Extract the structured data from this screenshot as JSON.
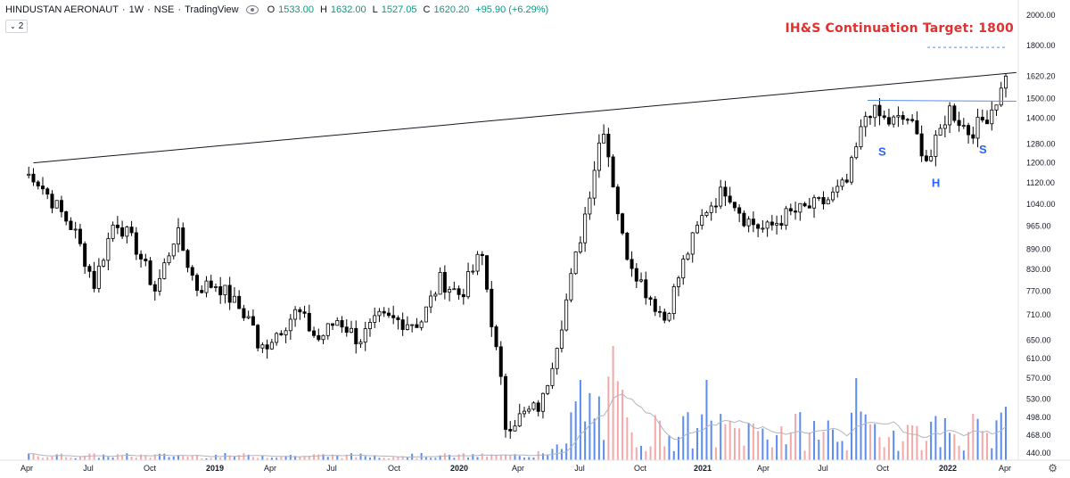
{
  "header": {
    "symbol": "HINDUSTAN AERONAUT",
    "interval": "1W",
    "exchange": "NSE",
    "source": "TradingView",
    "open_label": "O",
    "open": "1533.00",
    "high_label": "H",
    "high": "1632.00",
    "low_label": "L",
    "low": "1527.05",
    "close_label": "C",
    "close": "1620.20",
    "change": "+95.90 (+6.29%)",
    "collapse_count": "2"
  },
  "annotations": {
    "target_text": "IH&S Continuation Target: 1800",
    "shoulder_left": "S",
    "head": "H",
    "shoulder_right": "S"
  },
  "colors": {
    "up_candle": "#ffffff",
    "down_candle": "#000000",
    "volume_up": "#5b8def",
    "volume_down": "#f4a8a8",
    "neckline": "#5b8def",
    "target_text": "#e03131",
    "pattern_label": "#2962ff"
  },
  "chart_data": {
    "type": "candlestick",
    "price_axis": {
      "ticks": [
        2000,
        1800,
        1620.2,
        1500,
        1400,
        1280,
        1200,
        1120,
        1040,
        965,
        890,
        830,
        770,
        710,
        650,
        610,
        570,
        530,
        498,
        468,
        440
      ],
      "labels": [
        "2000.00",
        "1800.00",
        "1620.20",
        "1500.00",
        "1400.00",
        "1280.00",
        "1200.00",
        "1120.00",
        "1040.00",
        "965.00",
        "890.00",
        "830.00",
        "770.00",
        "710.00",
        "650.00",
        "610.00",
        "570.00",
        "530.00",
        "498.00",
        "468.00",
        "440.00"
      ],
      "scale": "log",
      "range": [
        436,
        2050
      ]
    },
    "time_axis": {
      "labels": [
        "Apr",
        "Jul",
        "Oct",
        "2019",
        "Apr",
        "Jul",
        "Oct",
        "2020",
        "Apr",
        "Jul",
        "Oct",
        "2021",
        "Apr",
        "Jul",
        "Oct",
        "2022",
        "Apr"
      ],
      "bold": [
        "2019",
        "2020",
        "2021",
        "2022"
      ]
    },
    "waypoints": [
      {
        "date": "2018-04",
        "close": 1150
      },
      {
        "date": "2018-06",
        "close": 950
      },
      {
        "date": "2018-07",
        "close": 790
      },
      {
        "date": "2018-08",
        "close": 990
      },
      {
        "date": "2018-09",
        "close": 900
      },
      {
        "date": "2018-10",
        "close": 770
      },
      {
        "date": "2018-11",
        "close": 950
      },
      {
        "date": "2018-12",
        "close": 780
      },
      {
        "date": "2019-01",
        "close": 790
      },
      {
        "date": "2019-03",
        "close": 680
      },
      {
        "date": "2019-03",
        "close": 620
      },
      {
        "date": "2019-05",
        "close": 720
      },
      {
        "date": "2019-06",
        "close": 650
      },
      {
        "date": "2019-07",
        "close": 700
      },
      {
        "date": "2019-08",
        "close": 650
      },
      {
        "date": "2019-09",
        "close": 700
      },
      {
        "date": "2019-11",
        "close": 690
      },
      {
        "date": "2019-12",
        "close": 800
      },
      {
        "date": "2020-01",
        "close": 760
      },
      {
        "date": "2020-02",
        "close": 880
      },
      {
        "date": "2020-03",
        "close": 560
      },
      {
        "date": "2020-03",
        "close": 480
      },
      {
        "date": "2020-05",
        "close": 520
      },
      {
        "date": "2020-06",
        "close": 700
      },
      {
        "date": "2020-07",
        "close": 960
      },
      {
        "date": "2020-08",
        "close": 1380
      },
      {
        "date": "2020-09",
        "close": 900
      },
      {
        "date": "2020-10",
        "close": 780
      },
      {
        "date": "2020-11",
        "close": 700
      },
      {
        "date": "2020-12",
        "close": 860
      },
      {
        "date": "2021-01",
        "close": 1020
      },
      {
        "date": "2021-02",
        "close": 1100
      },
      {
        "date": "2021-03",
        "close": 990
      },
      {
        "date": "2021-04",
        "close": 950
      },
      {
        "date": "2021-05",
        "close": 1000
      },
      {
        "date": "2021-07",
        "close": 1050
      },
      {
        "date": "2021-08",
        "close": 1120
      },
      {
        "date": "2021-09",
        "close": 1450
      },
      {
        "date": "2021-10",
        "close": 1380
      },
      {
        "date": "2021-11",
        "close": 1400
      },
      {
        "date": "2021-12",
        "close": 1200
      },
      {
        "date": "2022-01",
        "close": 1450
      },
      {
        "date": "2022-02",
        "close": 1330
      },
      {
        "date": "2022-03",
        "close": 1420
      },
      {
        "date": "2022-04",
        "close": 1620
      }
    ],
    "series": [
      {
        "name": "trendline",
        "points": [
          {
            "date": "2018-04",
            "price": 1200
          },
          {
            "date": "2022-04",
            "price": 1640
          }
        ]
      },
      {
        "name": "neckline",
        "points": [
          {
            "date": "2021-09",
            "price": 1490
          },
          {
            "date": "2022-04",
            "price": 1485
          }
        ]
      },
      {
        "name": "target",
        "points": [
          {
            "date": "2022-01",
            "price": 1800
          },
          {
            "date": "2022-04",
            "price": 1800
          }
        ]
      }
    ]
  }
}
